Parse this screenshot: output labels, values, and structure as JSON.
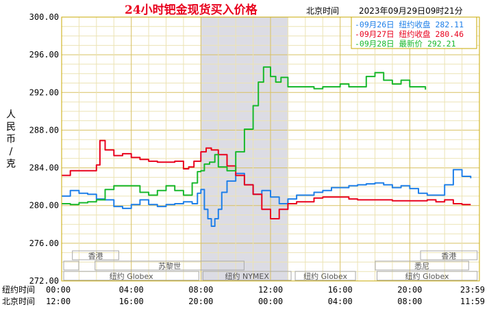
{
  "chart_data": {
    "type": "line",
    "title": "24小时钯金现货买入价格",
    "subtitle_label": "北京时间",
    "subtitle_datetime": "2023年09月29日09时21分",
    "ylabel": "人民币/克",
    "ylim": [
      272,
      300
    ],
    "y_ticks": [
      "300.00",
      "296.00",
      "292.00",
      "288.00",
      "284.00",
      "280.00",
      "276.00",
      "272.00"
    ],
    "grid": true,
    "legend_position": "top-right",
    "x_axis_rows": [
      {
        "label": "纽约时间",
        "ticks": [
          "00:00",
          "04:00",
          "08:00",
          "12:00",
          "16:00",
          "20:00",
          "23:59"
        ]
      },
      {
        "label": "北京时间",
        "ticks": [
          "12:00",
          "16:00",
          "20:00",
          "00:00",
          "04:00",
          "08:00",
          "11:59"
        ]
      }
    ],
    "x_hours_note_units": "hours since 00:00 New York time",
    "shaded_hours": [
      8,
      13
    ],
    "sessions": [
      {
        "label": "香港",
        "start": 0.5,
        "end": 3.4
      },
      {
        "label": "",
        "start": 0,
        "end": 1.1
      },
      {
        "label": "苏黎世",
        "start": 1.8,
        "end": 10.6
      },
      {
        "label": "纽约 Globex",
        "start": 0,
        "end": 8
      },
      {
        "label": "纽约 NYMEX",
        "start": 8,
        "end": 13.3
      },
      {
        "label": "纽约 Globex",
        "start": 13.3,
        "end": 17
      },
      {
        "label": "悉尼",
        "start": 17.9,
        "end": 23.5
      },
      {
        "label": "香港",
        "start": 20.5,
        "end": 23.99
      },
      {
        "label": "纽约 Globex",
        "start": 18,
        "end": 23.99
      }
    ],
    "series": [
      {
        "name": "09月26日 纽约收盘 282.11",
        "color": "#1e7fe8",
        "x": [
          0,
          0.5,
          1,
          1.5,
          2,
          2.5,
          3,
          3.5,
          4,
          4.5,
          5,
          5.5,
          6,
          6.5,
          7,
          7.5,
          7.8,
          8,
          8.2,
          8.4,
          8.6,
          8.8,
          9,
          9.2,
          9.5,
          10,
          10.5,
          11,
          11.5,
          12,
          12.5,
          13,
          13.5,
          14,
          14.5,
          15,
          15.5,
          16,
          16.5,
          17,
          17.5,
          18,
          18.5,
          19,
          19.5,
          20,
          20.5,
          21,
          21.5,
          22,
          22.5,
          23,
          23.5
        ],
        "y": [
          281,
          281.6,
          281.3,
          281.2,
          280.7,
          280.6,
          279.9,
          279.7,
          280.1,
          280.6,
          280.1,
          279.9,
          280.1,
          280.2,
          280.4,
          280.2,
          281.3,
          281.7,
          279.6,
          278.6,
          277.8,
          278.6,
          279.6,
          281.4,
          282.6,
          283.4,
          282.2,
          281.2,
          281.6,
          280.9,
          280.2,
          280.7,
          281.1,
          281.1,
          281.4,
          281.6,
          281.9,
          281.9,
          282.1,
          282.2,
          282.3,
          282.4,
          282.2,
          281.9,
          282.1,
          281.8,
          281.3,
          281.1,
          281.1,
          282.2,
          283.8,
          283.1,
          282.9
        ]
      },
      {
        "name": "09月27日 纽约收盘 280.46",
        "color": "#e8001c",
        "x": [
          0,
          0.5,
          1,
          1.5,
          2,
          2.2,
          2.5,
          3,
          3.5,
          4,
          4.5,
          5,
          5.5,
          6,
          6.5,
          7,
          7.3,
          7.6,
          8,
          8.3,
          8.6,
          9,
          9.5,
          10,
          10.5,
          11,
          11.5,
          12,
          12.5,
          13,
          13.5,
          14,
          14.5,
          15,
          15.5,
          16,
          16.5,
          17,
          17.5,
          18,
          18.5,
          19,
          19.5,
          20,
          20.5,
          21,
          21.5,
          22,
          22.5,
          23,
          23.5
        ],
        "y": [
          283.2,
          283.7,
          283.7,
          283.7,
          284.3,
          286.9,
          285.9,
          285.3,
          285.5,
          285.1,
          284.9,
          284.7,
          284.6,
          284.6,
          284.7,
          283.9,
          284.1,
          284.7,
          285.7,
          286.1,
          285.9,
          285.4,
          284.2,
          283.2,
          282.2,
          281.2,
          279.6,
          278.6,
          279.6,
          280.2,
          280.4,
          280.4,
          280.8,
          280.9,
          280.9,
          280.9,
          280.7,
          280.6,
          280.6,
          280.6,
          280.6,
          280.5,
          280.5,
          280.5,
          280.5,
          280.6,
          280.4,
          280.6,
          280.2,
          280.1,
          280.1
        ]
      },
      {
        "name": "09月28日 最新价 292.21",
        "color": "#18b82c",
        "x": [
          0,
          0.5,
          1,
          1.5,
          2,
          2.5,
          3,
          3.5,
          4,
          4.5,
          5,
          5.5,
          6,
          6.5,
          7,
          7.5,
          7.8,
          8,
          8.2,
          8.5,
          8.8,
          9,
          9.5,
          10,
          10.5,
          11,
          11.3,
          11.6,
          12,
          12.3,
          12.6,
          13,
          13.5,
          14,
          14.5,
          15,
          15.5,
          16,
          16.5,
          17,
          17.5,
          18,
          18.5,
          19,
          19.5,
          20,
          20.5,
          20.9
        ],
        "y": [
          280.2,
          280.1,
          280.3,
          280.4,
          280.6,
          281.7,
          282.1,
          282.1,
          282.1,
          281.4,
          281.1,
          281.6,
          282.1,
          281.6,
          281.1,
          282.4,
          283.6,
          283.7,
          284.4,
          284.6,
          285.4,
          284.1,
          283.7,
          285.7,
          288.1,
          290.6,
          293.1,
          294.7,
          293.7,
          293.1,
          293.6,
          292.6,
          292.6,
          292.6,
          292.4,
          292.6,
          292.6,
          292.9,
          292.6,
          292.6,
          293.7,
          294.1,
          293.3,
          292.9,
          293.3,
          292.6,
          292.6,
          292.3
        ]
      }
    ]
  }
}
